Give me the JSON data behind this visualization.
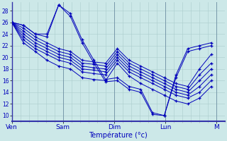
{
  "title": "",
  "xlabel": "Température (°c)",
  "bg_color": "#cce8e8",
  "grid_color": "#aacccc",
  "line_color": "#0000bb",
  "xlim": [
    0,
    100
  ],
  "ylim": [
    9,
    29.5
  ],
  "yticks": [
    10,
    12,
    14,
    16,
    18,
    20,
    22,
    24,
    26,
    28
  ],
  "day_ticks": [
    0,
    24,
    48,
    72,
    96
  ],
  "day_labels": [
    "Ven",
    "Sam",
    "Dim",
    "Lun",
    "M"
  ],
  "series": [
    [
      26.0,
      22.5,
      21.0,
      19.5,
      18.5,
      18.0,
      16.5,
      16.2,
      16.0,
      19.0,
      16.8,
      15.5,
      14.5,
      13.5,
      12.5,
      12.0,
      13.0,
      15.0
    ],
    [
      26.0,
      23.0,
      21.5,
      20.5,
      19.5,
      19.0,
      17.5,
      17.2,
      17.0,
      19.5,
      17.5,
      16.5,
      15.5,
      14.5,
      13.5,
      13.0,
      14.0,
      16.0
    ],
    [
      26.0,
      23.5,
      22.0,
      21.0,
      20.0,
      19.5,
      18.0,
      17.8,
      17.5,
      20.0,
      18.0,
      17.0,
      16.0,
      15.0,
      14.0,
      13.5,
      15.0,
      17.0
    ],
    [
      26.0,
      24.0,
      22.5,
      21.5,
      20.5,
      20.0,
      18.5,
      18.2,
      18.0,
      20.5,
      18.5,
      17.5,
      16.5,
      15.5,
      14.5,
      14.0,
      16.0,
      18.0
    ],
    [
      26.0,
      24.5,
      23.0,
      22.0,
      21.0,
      20.5,
      19.0,
      18.8,
      18.5,
      21.0,
      19.0,
      18.0,
      17.0,
      16.0,
      15.0,
      14.5,
      17.0,
      19.0
    ],
    [
      26.0,
      25.0,
      23.5,
      22.5,
      21.5,
      21.0,
      19.5,
      19.2,
      19.0,
      21.5,
      19.5,
      18.5,
      17.5,
      16.5,
      15.5,
      15.0,
      18.0,
      20.5
    ],
    [
      26.0,
      25.5,
      24.0,
      24.0,
      29.0,
      27.5,
      23.0,
      19.5,
      16.2,
      16.5,
      15.0,
      14.5,
      10.5,
      10.0,
      16.5,
      21.0,
      21.5,
      22.0
    ],
    [
      26.0,
      25.5,
      24.0,
      23.5,
      29.0,
      27.0,
      22.5,
      19.0,
      15.8,
      16.0,
      14.5,
      14.0,
      10.2,
      10.0,
      17.0,
      21.5,
      22.0,
      22.5
    ]
  ],
  "x_step": 5.5
}
